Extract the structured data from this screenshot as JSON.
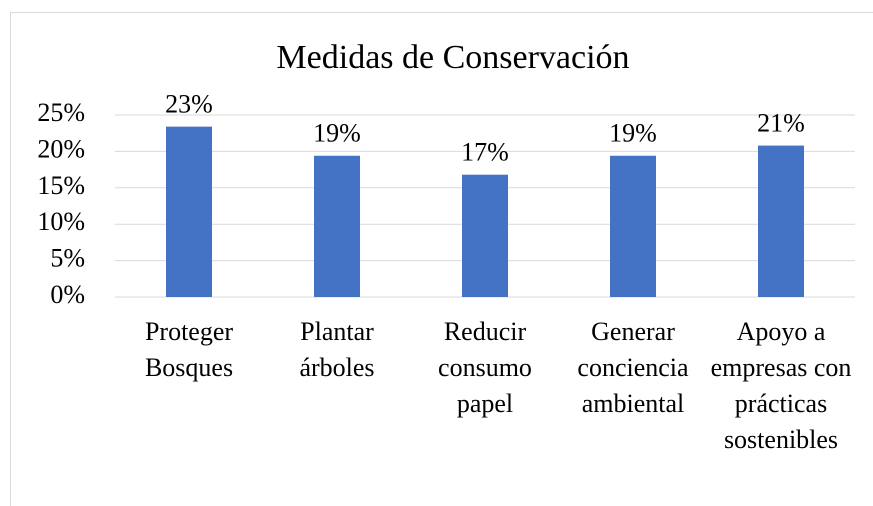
{
  "chart_data": {
    "type": "bar",
    "title": "Medidas de Conservación",
    "categories": [
      "Proteger Bosques",
      "Plantar árboles",
      "Reducir consumo papel",
      "Generar conciencia ambiental",
      "Apoyo a empresas con prácticas sostenibles"
    ],
    "values": [
      23.4,
      19.4,
      16.8,
      19.4,
      20.8
    ],
    "value_labels": [
      "23%",
      "19%",
      "17%",
      "19%",
      "21%"
    ],
    "color": "#4472c4",
    "ylim": [
      0,
      25
    ],
    "yticks": [
      {
        "value": 0,
        "label": "0%"
      },
      {
        "value": 5,
        "label": "5%"
      },
      {
        "value": 10,
        "label": "10%"
      },
      {
        "value": 15,
        "label": "15%"
      },
      {
        "value": 20,
        "label": "20%"
      },
      {
        "value": 25,
        "label": "25%"
      }
    ],
    "grid": true
  }
}
